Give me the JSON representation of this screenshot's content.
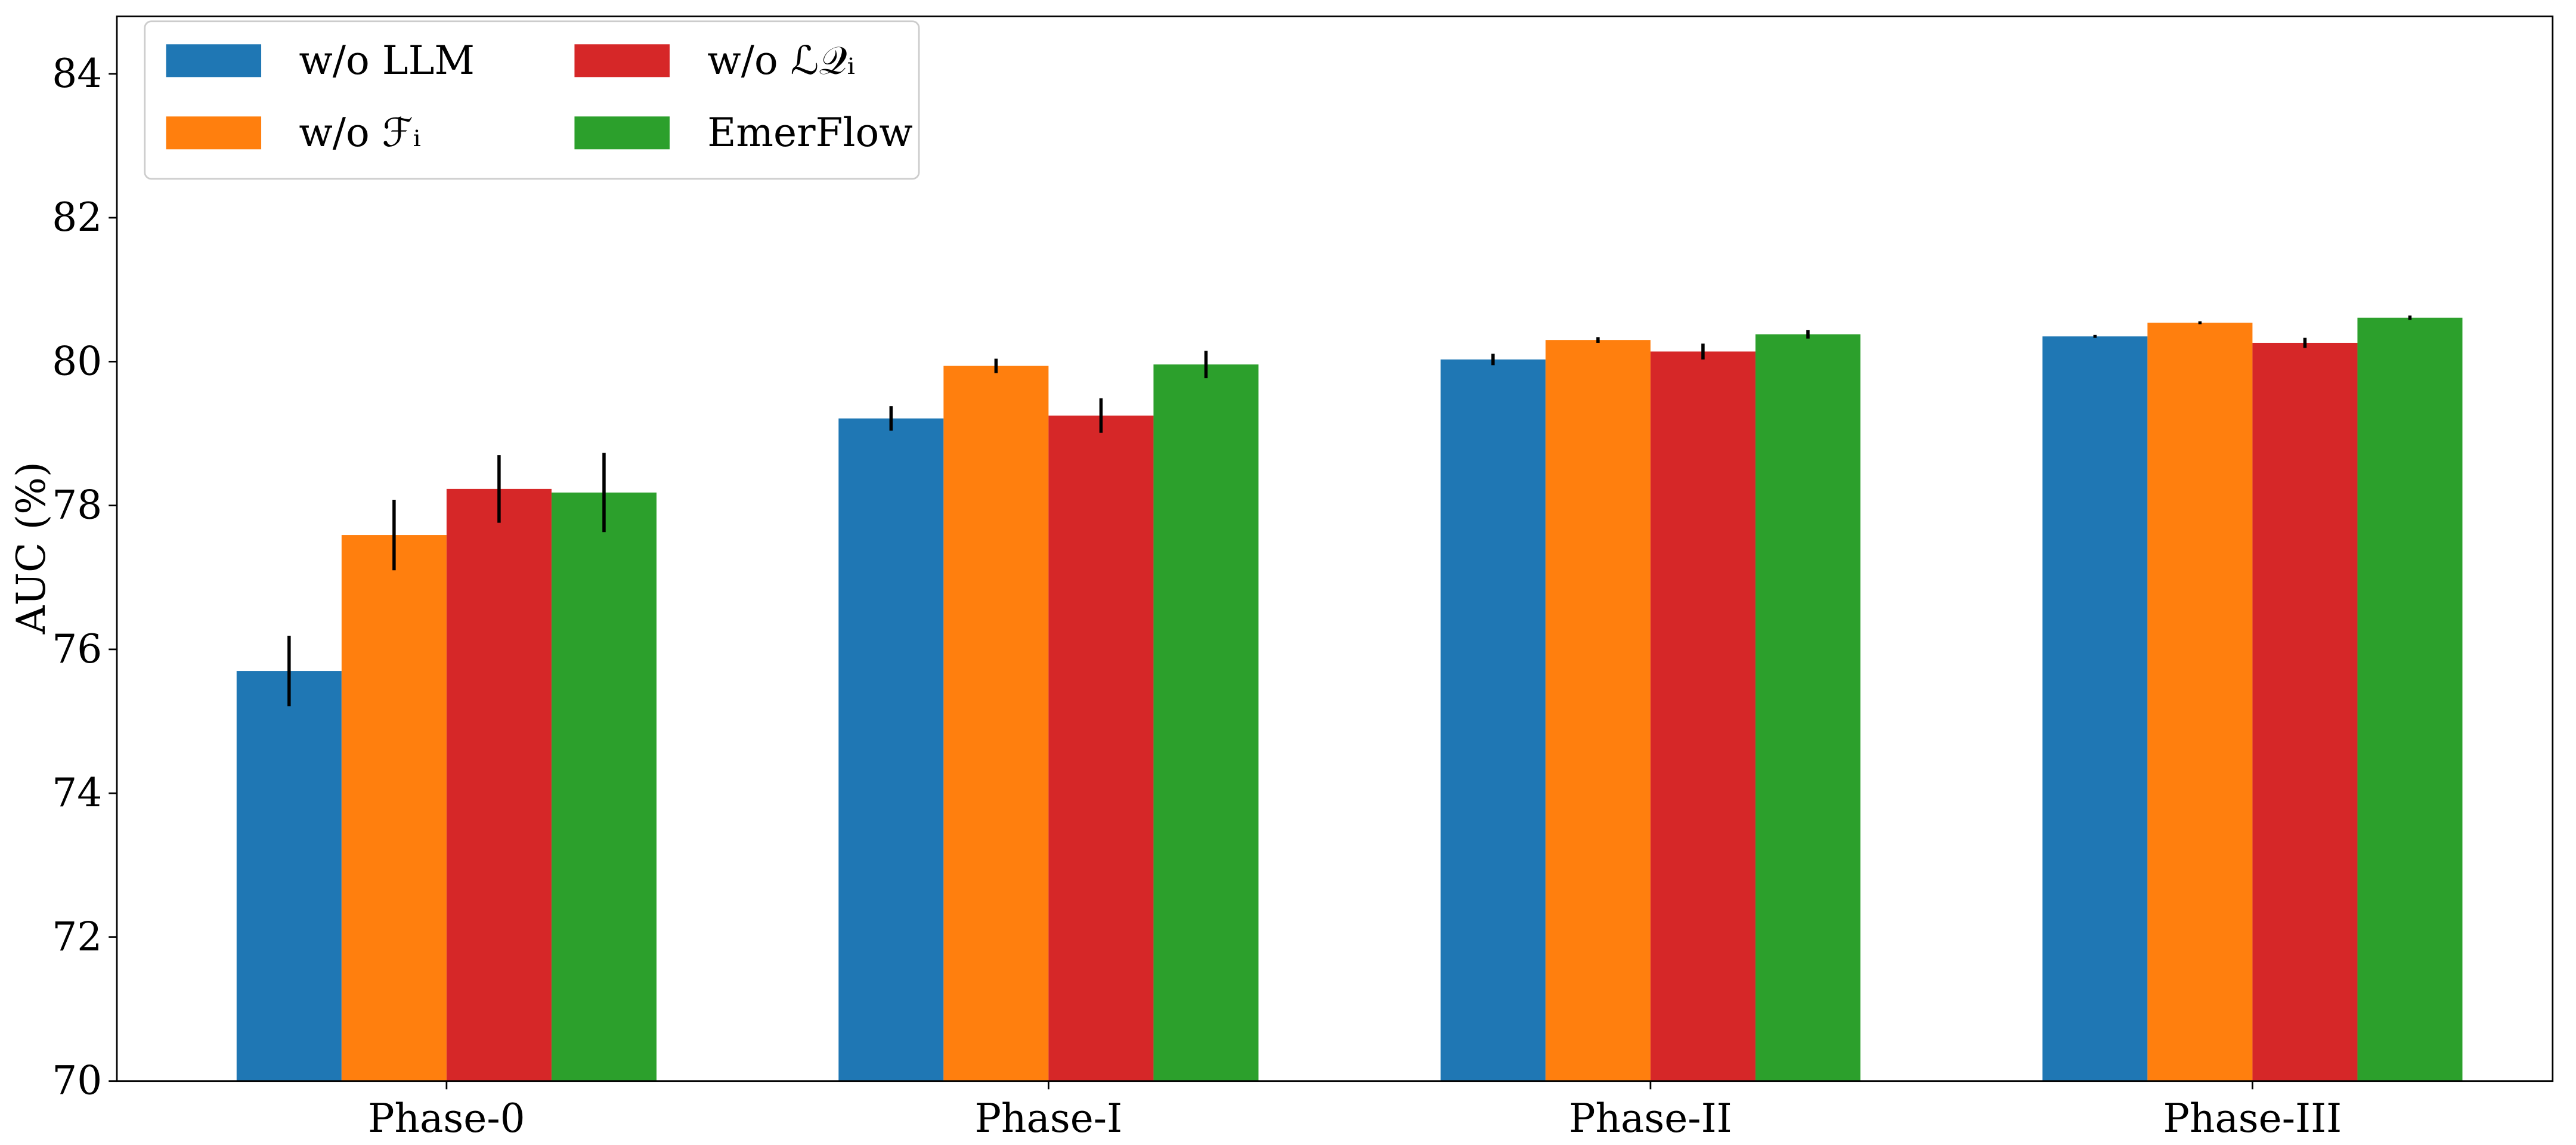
{
  "chart_data": {
    "type": "bar",
    "title": "",
    "xlabel": "",
    "ylabel": "AUC (%)",
    "ylim": [
      70,
      85
    ],
    "yticks": [
      70,
      72,
      74,
      76,
      78,
      80,
      82,
      84
    ],
    "categories": [
      "Phase-0",
      "Phase-I",
      "Phase-II",
      "Phase-III"
    ],
    "legend_position": "top-left",
    "grid": false,
    "series": [
      {
        "name": "w/o LLM",
        "color": "#1f77b4",
        "values": [
          75.7,
          79.21,
          80.03,
          80.35
        ],
        "errors": [
          0.49,
          0.17,
          0.08,
          0.02
        ]
      },
      {
        "name": "w/o ℱᵢ",
        "color": "#ff7f0e",
        "values": [
          77.59,
          79.94,
          80.3,
          80.54
        ],
        "errors": [
          0.49,
          0.1,
          0.04,
          0.02
        ]
      },
      {
        "name": "w/o ℒ𝒬ᵢ",
        "color": "#d62728",
        "values": [
          78.23,
          79.25,
          80.14,
          80.26
        ],
        "errors": [
          0.47,
          0.24,
          0.11,
          0.07
        ]
      },
      {
        "name": "EmerFlow",
        "color": "#2ca02c",
        "values": [
          78.18,
          79.96,
          80.38,
          80.61
        ],
        "errors": [
          0.55,
          0.19,
          0.06,
          0.03
        ]
      }
    ]
  }
}
